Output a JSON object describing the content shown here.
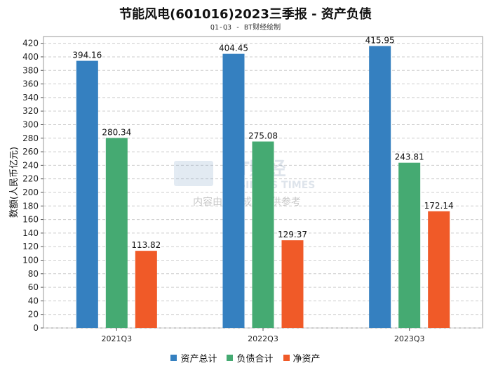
{
  "chart_data": {
    "type": "bar",
    "title": "节能风电(601016)2023三季报 - 资产负债",
    "subtitle": "Q1-Q3 - BT财经绘制",
    "xlabel": "",
    "ylabel": "数额(人民币亿元)",
    "ylim": [
      0,
      430
    ],
    "yticks": [
      0,
      20,
      40,
      60,
      80,
      100,
      120,
      140,
      160,
      180,
      200,
      220,
      240,
      260,
      280,
      300,
      320,
      340,
      360,
      380,
      400,
      420
    ],
    "grid": true,
    "legend_position": "bottom",
    "categories": [
      "2021Q3",
      "2022Q3",
      "2023Q3"
    ],
    "series": [
      {
        "name": "资产总计",
        "color": "#3580c0",
        "values": [
          394.16,
          404.45,
          415.95
        ]
      },
      {
        "name": "负债合计",
        "color": "#45aa72",
        "values": [
          280.34,
          275.08,
          243.81
        ]
      },
      {
        "name": "净资产",
        "color": "#f05a28",
        "values": [
          113.82,
          129.37,
          172.14
        ]
      }
    ]
  },
  "watermark": {
    "brand": "BT财经",
    "brand_en": "BUSINESS TIMES",
    "notice": "内容由AI生成，仅供参考"
  }
}
